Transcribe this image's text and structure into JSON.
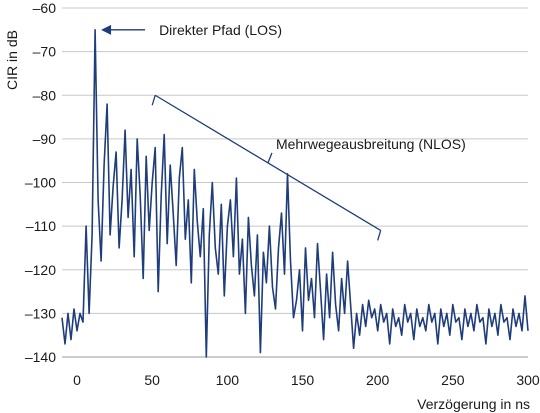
{
  "chart_data": {
    "type": "line",
    "xlabel": "Verzögerung in ns",
    "ylabel": "CIR in dB",
    "xlim": [
      -10,
      300
    ],
    "ylim": [
      -140,
      -60
    ],
    "x_ticks": [
      0,
      50,
      100,
      150,
      200,
      250,
      300
    ],
    "y_ticks": [
      -60,
      -70,
      -80,
      -90,
      -100,
      -110,
      -120,
      -130,
      -140
    ],
    "x_tick_labels": [
      "0",
      "50",
      "100",
      "150",
      "200",
      "250",
      "300"
    ],
    "y_tick_labels": [
      "–60",
      "–70",
      "–80",
      "–90",
      "–100",
      "–110",
      "–120",
      "–130",
      "–140"
    ],
    "grid": "horizontal",
    "line_color": "#1f3d7a",
    "annotations": {
      "los": {
        "text": "Direkter Pfad (LOS)",
        "x": 12,
        "y": -65
      },
      "nlos": {
        "text": "Mehrwegeausbreitung (NLOS)",
        "from": [
          52,
          -80
        ],
        "to": [
          202,
          -111
        ]
      }
    },
    "series": [
      {
        "x": [
          -10,
          -8,
          -6,
          -4,
          -2,
          0,
          2,
          4,
          6,
          8,
          10,
          12,
          14,
          16,
          18,
          20,
          22,
          24,
          26,
          28,
          30,
          32,
          34,
          36,
          38,
          40,
          42,
          44,
          46,
          48,
          50,
          52,
          54,
          56,
          58,
          60,
          62,
          64,
          66,
          68,
          70,
          72,
          74,
          76,
          78,
          80,
          82,
          84,
          86,
          88,
          90,
          92,
          94,
          96,
          98,
          100,
          102,
          104,
          106,
          108,
          110,
          112,
          114,
          116,
          118,
          120,
          122,
          124,
          126,
          128,
          130,
          132,
          134,
          136,
          138,
          140,
          142,
          144,
          146,
          148,
          150,
          152,
          154,
          156,
          158,
          160,
          162,
          164,
          166,
          168,
          170,
          172,
          174,
          176,
          178,
          180,
          182,
          184,
          186,
          188,
          190,
          192,
          194,
          196,
          198,
          200,
          202,
          204,
          206,
          208,
          210,
          212,
          214,
          216,
          218,
          220,
          222,
          224,
          226,
          228,
          230,
          232,
          234,
          236,
          238,
          240,
          242,
          244,
          246,
          248,
          250,
          252,
          254,
          256,
          258,
          260,
          262,
          264,
          266,
          268,
          270,
          272,
          274,
          276,
          278,
          280,
          282,
          284,
          286,
          288,
          290,
          292,
          294,
          296,
          298,
          300
        ],
        "y": [
          -131,
          -137,
          -130,
          -136,
          -129,
          -134,
          -130,
          -132,
          -110,
          -130,
          -112,
          -65,
          -104,
          -118,
          -96,
          -82,
          -112,
          -101,
          -93,
          -115,
          -104,
          -88,
          -108,
          -97,
          -117,
          -90,
          -103,
          -122,
          -94,
          -111,
          -100,
          -92,
          -125,
          -103,
          -89,
          -114,
          -96,
          -107,
          -119,
          -99,
          -92,
          -113,
          -104,
          -123,
          -97,
          -109,
          -117,
          -106,
          -140,
          -112,
          -100,
          -115,
          -121,
          -105,
          -126,
          -110,
          -104,
          -117,
          -99,
          -121,
          -113,
          -130,
          -108,
          -119,
          -126,
          -112,
          -139,
          -116,
          -123,
          -110,
          -124,
          -129,
          -115,
          -107,
          -121,
          -98,
          -118,
          -131,
          -127,
          -120,
          -134,
          -115,
          -127,
          -122,
          -131,
          -114,
          -125,
          -136,
          -121,
          -131,
          -116,
          -128,
          -134,
          -122,
          -130,
          -118,
          -128,
          -138,
          -130,
          -135,
          -128,
          -133,
          -127,
          -131,
          -129,
          -134,
          -128,
          -132,
          -130,
          -137,
          -129,
          -133,
          -131,
          -135,
          -128,
          -132,
          -130,
          -136,
          -129,
          -133,
          -131,
          -134,
          -128,
          -132,
          -130,
          -137,
          -129,
          -133,
          -130,
          -135,
          -128,
          -132,
          -131,
          -136,
          -129,
          -133,
          -130,
          -134,
          -128,
          -132,
          -131,
          -137,
          -129,
          -133,
          -130,
          -135,
          -128,
          -132,
          -131,
          -136,
          -129,
          -133,
          -130,
          -134,
          -126,
          -134
        ]
      }
    ]
  }
}
